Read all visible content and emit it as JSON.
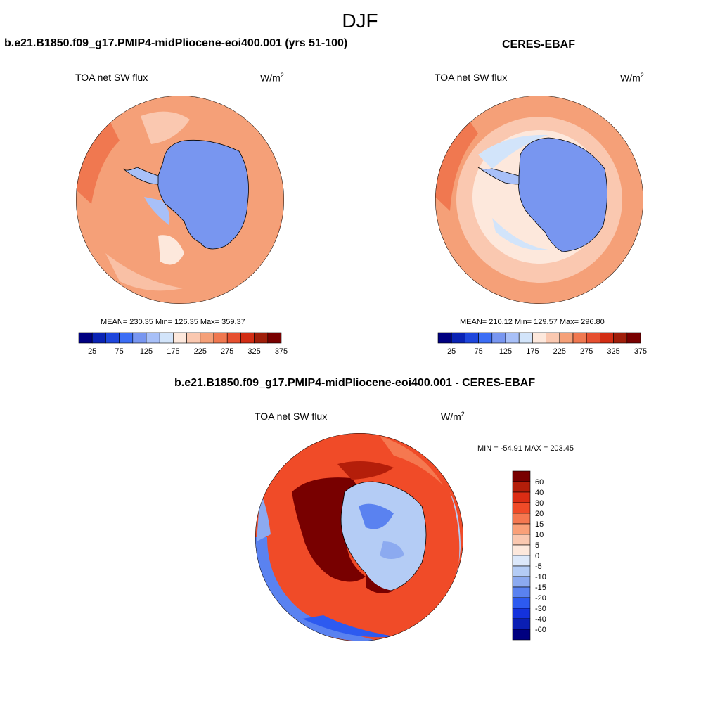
{
  "title": "DJF",
  "panels": [
    {
      "title": "b.e21.B1850.f09_g17.PMIP4-midPliocene-eoi400.001 (yrs 51-100)",
      "left_label": "TOA net SW flux",
      "units_base": "W/m",
      "units_exp": "2",
      "stats": "MEAN= 230.35  Min= 126.35  Max= 359.37",
      "colorbar_labels": [
        "25",
        "75",
        "125",
        "175",
        "225",
        "275",
        "325",
        "375"
      ]
    },
    {
      "title": "CERES-EBAF",
      "left_label": "TOA net SW flux",
      "units_base": "W/m",
      "units_exp": "2",
      "stats": "MEAN= 210.12  Min= 129.57  Max= 296.80",
      "colorbar_labels": [
        "25",
        "75",
        "125",
        "175",
        "225",
        "275",
        "325",
        "375"
      ]
    },
    {
      "title": "b.e21.B1850.f09_g17.PMIP4-midPliocene-eoi400.001 - CERES-EBAF",
      "left_label": "TOA net SW flux",
      "units_base": "W/m",
      "units_exp": "2",
      "stats": "MIN = -54.91 MAX = 203.45",
      "colorbar_labels": [
        "60",
        "40",
        "30",
        "20",
        "15",
        "10",
        "5",
        "0",
        "-5",
        "-10",
        "-15",
        "-20",
        "-30",
        "-40",
        "-60"
      ]
    }
  ],
  "colors": {
    "abs_scale": [
      "#000080",
      "#0a23b4",
      "#1e46dc",
      "#3c6ef5",
      "#7896f0",
      "#a8c0f8",
      "#d2e4fa",
      "#fde8dc",
      "#fac8b0",
      "#f5a078",
      "#f07850",
      "#e65030",
      "#d22d14",
      "#a01e0a",
      "#780000"
    ],
    "diff_scale": [
      "#780000",
      "#b41e0a",
      "#dc2d14",
      "#f04b28",
      "#f57850",
      "#faa078",
      "#fac8b0",
      "#fde8dc",
      "#dce8fa",
      "#b4ccf5",
      "#8caaf0",
      "#5a82f0",
      "#2d5af0",
      "#1432dc",
      "#0a1eb4",
      "#000080"
    ],
    "ocean_model": "#f5a078",
    "ocean_obs": "#fac8b0",
    "land_ice": "#7896f0",
    "coast": "#000000"
  }
}
